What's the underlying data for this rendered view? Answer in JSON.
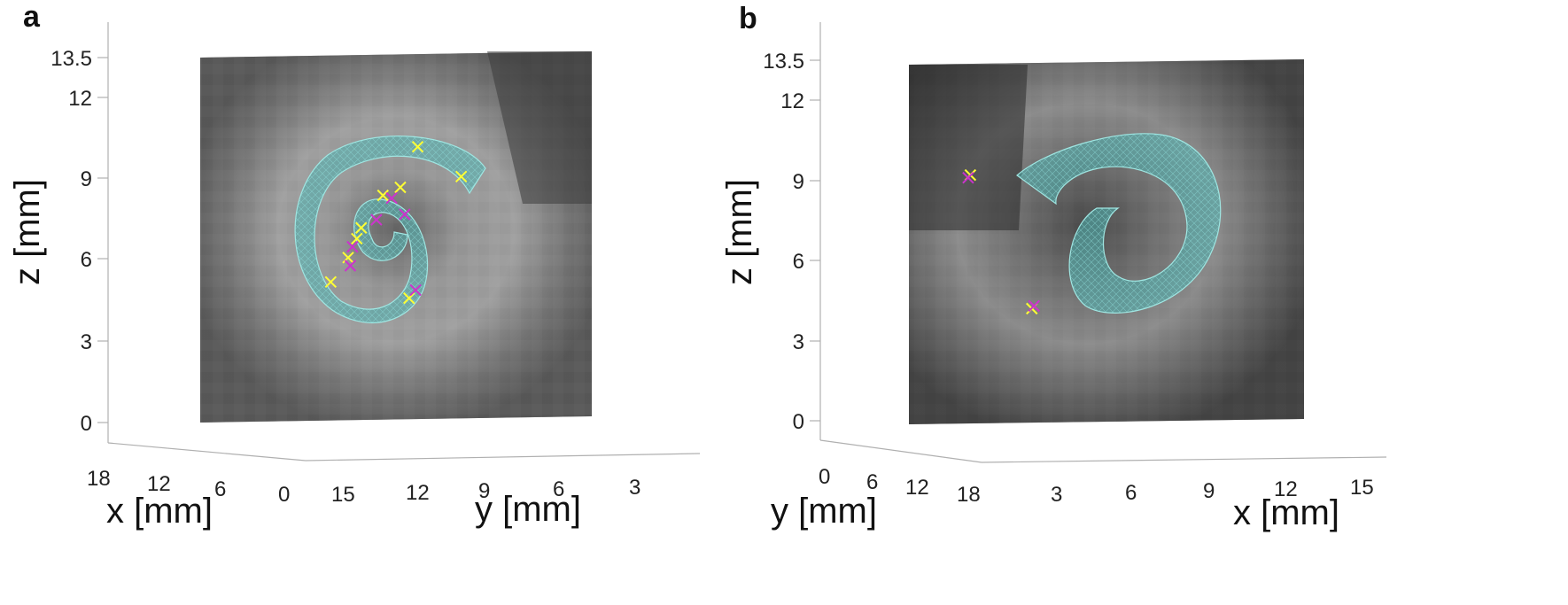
{
  "chart_data": [
    {
      "type": "scatter",
      "panel_label": "a",
      "title": "",
      "zlabel": "z [mm]",
      "xlabel": "x [mm]",
      "ylabel": "y [mm]",
      "z_ticks": [
        "13.5",
        "12",
        "9",
        "6",
        "3",
        "0"
      ],
      "x_ticks": [
        "18",
        "12",
        "6",
        "0"
      ],
      "y_ticks": [
        "15",
        "12",
        "9",
        "6",
        "3"
      ],
      "zlim": [
        0,
        13.5
      ],
      "grid": false,
      "surface_color": "#4fb3b0",
      "markers": [
        {
          "color": "#ffff33",
          "points": [
            [
              10.0,
              10.2
            ],
            [
              9.2,
              8.7
            ],
            [
              6.0,
              5.2
            ],
            [
              7.4,
              7.2
            ],
            [
              8.4,
              8.4
            ],
            [
              6.8,
              6.1
            ],
            [
              12.0,
              9.1
            ],
            [
              9.6,
              4.6
            ],
            [
              7.2,
              6.8
            ]
          ]
        },
        {
          "color": "#cc33cc",
          "points": [
            [
              8.8,
              8.3
            ],
            [
              7.0,
              6.5
            ],
            [
              8.1,
              7.5
            ],
            [
              9.9,
              4.9
            ],
            [
              6.9,
              5.8
            ],
            [
              9.4,
              7.7
            ]
          ]
        }
      ]
    },
    {
      "type": "scatter",
      "panel_label": "b",
      "title": "",
      "zlabel": "z [mm]",
      "xlabel": "x [mm]",
      "ylabel": "y [mm]",
      "z_ticks": [
        "13.5",
        "12",
        "9",
        "6",
        "3",
        "0"
      ],
      "y_ticks": [
        "0",
        "6",
        "12",
        "18"
      ],
      "x_ticks": [
        "3",
        "6",
        "9",
        "12",
        "15"
      ],
      "zlim": [
        0,
        13.5
      ],
      "grid": false,
      "surface_color": "#4fb3b0",
      "markers": [
        {
          "color": "#ffff33",
          "points": [
            [
              2.8,
              9.2
            ],
            [
              5.6,
              4.2
            ]
          ]
        },
        {
          "color": "#cc33cc",
          "points": [
            [
              2.7,
              9.1
            ],
            [
              5.7,
              4.3
            ]
          ]
        }
      ]
    }
  ]
}
